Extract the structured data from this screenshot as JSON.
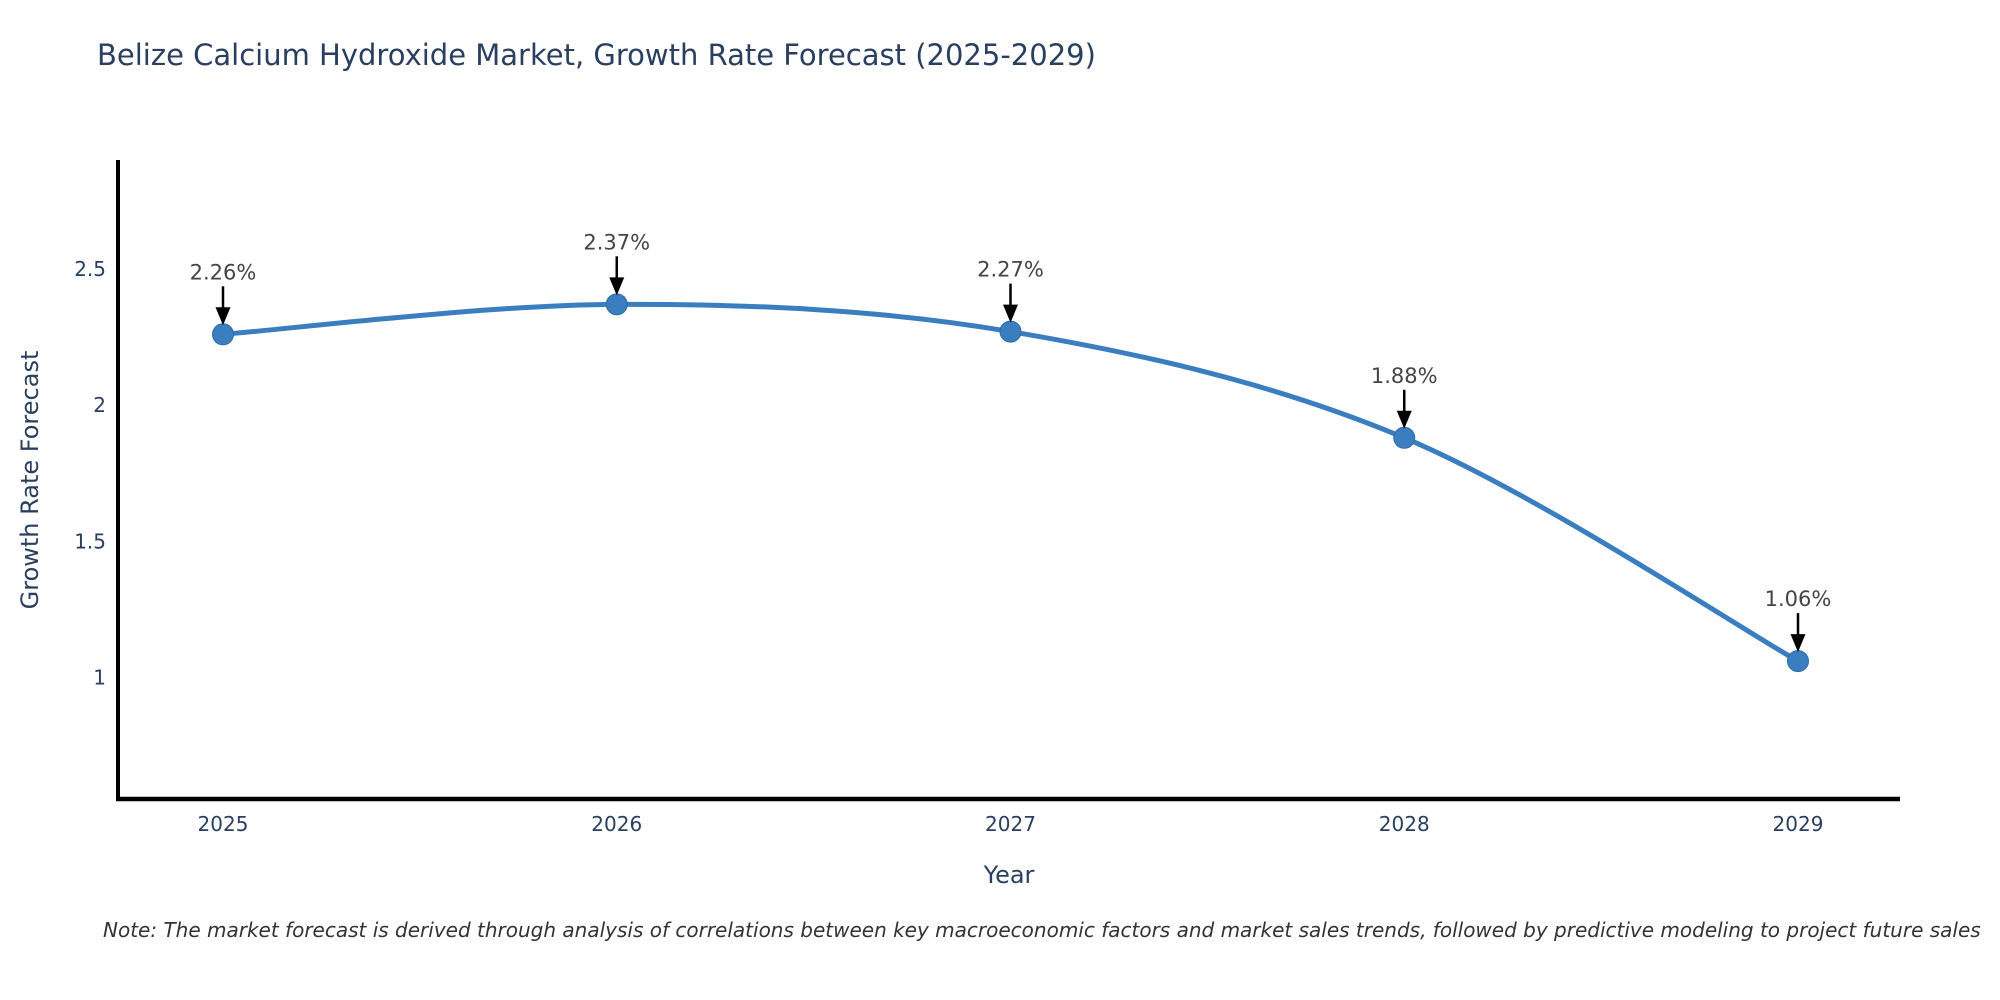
{
  "title": "Belize Calcium Hydroxide Market, Growth Rate Forecast (2025-2029)",
  "note": "Note: The market forecast is derived through analysis of correlations between key macroeconomic factors and market sales trends, followed by predictive modeling to project future sales",
  "colors": {
    "line": "#3a7ec0",
    "marker_fill": "#3a7ec0",
    "marker_stroke": "#2e6da4",
    "axis_line": "#000000",
    "title_text": "#2a3f5f",
    "tick_text": "#2a3f5f",
    "axis_title_text": "#2a3f5f",
    "annotation_text": "#444444",
    "arrow": "#000000",
    "note_text": "#333333",
    "background": "#ffffff"
  },
  "chart_data": {
    "type": "line",
    "title": "Belize Calcium Hydroxide Market, Growth Rate Forecast (2025-2029)",
    "xlabel": "Year",
    "ylabel": "Growth Rate Forecast",
    "x": [
      2025,
      2026,
      2027,
      2028,
      2029
    ],
    "series": [
      {
        "name": "Growth Rate Forecast",
        "values": [
          2.26,
          2.37,
          2.27,
          1.88,
          1.06
        ],
        "point_labels": [
          "2.26%",
          "2.37%",
          "2.27%",
          "1.88%",
          "1.06%"
        ]
      }
    ],
    "yticks": [
      1,
      1.5,
      2,
      2.5
    ],
    "ylim": [
      0.55,
      2.9
    ],
    "line_shape": "spline",
    "grid": false,
    "legend_visible": false,
    "annotations_with_arrows": true
  }
}
